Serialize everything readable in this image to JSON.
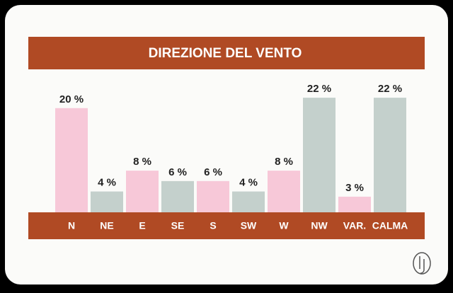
{
  "chart_data": {
    "type": "bar",
    "title": "DIREZIONE DEL VENTO",
    "categories": [
      "N",
      "NE",
      "E",
      "SE",
      "S",
      "SW",
      "W",
      "NW",
      "VAR.",
      "CALMA"
    ],
    "values": [
      20,
      4,
      8,
      6,
      6,
      4,
      8,
      22,
      3,
      22
    ],
    "value_labels": [
      "20 %",
      "4 %",
      "8 %",
      "6 %",
      "6 %",
      "4 %",
      "8 %",
      "22 %",
      "3 %",
      "22 %"
    ],
    "colors": [
      "#f7c8d8",
      "#c4d0cc",
      "#f7c8d8",
      "#c4d0cc",
      "#f7c8d8",
      "#c4d0cc",
      "#f7c8d8",
      "#c4d0cc",
      "#f7c8d8",
      "#c4d0cc"
    ],
    "band_color": "#b04a24"
  }
}
